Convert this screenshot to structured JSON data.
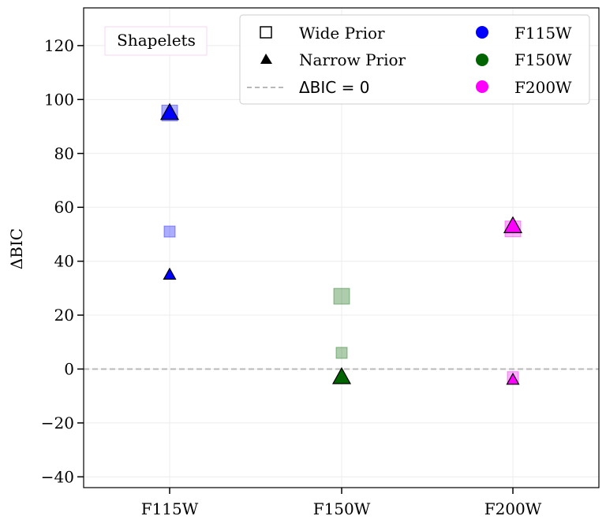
{
  "chart_data": {
    "type": "scatter",
    "xlabel": "",
    "ylabel": "ΔBIC",
    "categories": [
      "F115W",
      "F150W",
      "F200W"
    ],
    "ylim": [
      -44,
      134
    ],
    "yticks": [
      -40,
      -20,
      0,
      20,
      40,
      60,
      80,
      100,
      120
    ],
    "ytick_labels": [
      "−40",
      "−20",
      "0",
      "20",
      "40",
      "60",
      "80",
      "100",
      "120"
    ],
    "grid": true,
    "annotation": "Shapelets",
    "reference_line": {
      "y": 0,
      "label": "ΔBIC = 0",
      "style": "dashed",
      "color": "#b8b8b8"
    },
    "filter_colors": {
      "F115W": "#0000ff",
      "F150W": "#006400",
      "F200W": "#ff00ff"
    },
    "series": [
      {
        "name": "Wide Prior",
        "marker": "square",
        "points": [
          {
            "x": "F115W",
            "y": 95,
            "size": "large"
          },
          {
            "x": "F115W",
            "y": 51,
            "size": "small"
          },
          {
            "x": "F150W",
            "y": 27,
            "size": "large"
          },
          {
            "x": "F150W",
            "y": 6,
            "size": "small"
          },
          {
            "x": "F200W",
            "y": 52,
            "size": "large"
          },
          {
            "x": "F200W",
            "y": -3,
            "size": "small"
          }
        ]
      },
      {
        "name": "Narrow Prior",
        "marker": "triangle",
        "points": [
          {
            "x": "F115W",
            "y": 95,
            "size": "large"
          },
          {
            "x": "F115W",
            "y": 35,
            "size": "small"
          },
          {
            "x": "F150W",
            "y": -3,
            "size": "large"
          },
          {
            "x": "F200W",
            "y": 53,
            "size": "large"
          },
          {
            "x": "F200W",
            "y": -4,
            "size": "small"
          }
        ]
      }
    ],
    "legend": {
      "placement": "top-right",
      "entries": [
        {
          "label": "Wide Prior",
          "symbol": "square-open"
        },
        {
          "label": "Narrow Prior",
          "symbol": "triangle"
        },
        {
          "label": "ΔBIC = 0",
          "symbol": "dashed-line"
        },
        {
          "label": "F115W",
          "symbol": "circle",
          "color": "#0000ff"
        },
        {
          "label": "F150W",
          "symbol": "circle",
          "color": "#006400"
        },
        {
          "label": "F200W",
          "symbol": "circle",
          "color": "#ff00ff"
        }
      ]
    }
  }
}
